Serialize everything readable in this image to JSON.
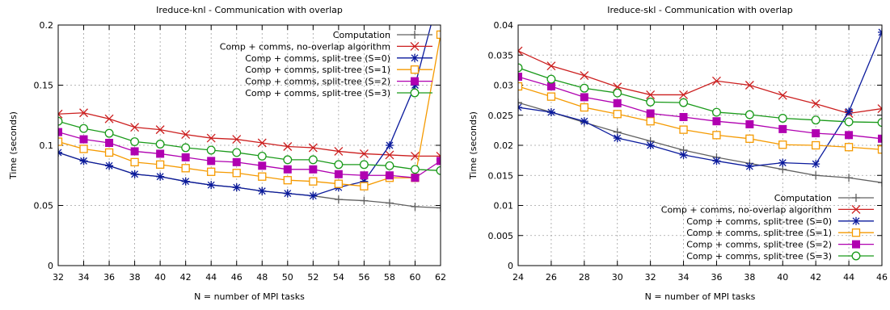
{
  "chart_data": [
    {
      "type": "line",
      "title": "Ireduce-knl - Communication with overlap",
      "xlabel": "N = number of MPI tasks",
      "ylabel": "Time (seconds)",
      "xlim": [
        32,
        62
      ],
      "ylim": [
        0,
        0.2
      ],
      "x_ticks": [
        32,
        34,
        36,
        38,
        40,
        42,
        44,
        46,
        48,
        50,
        52,
        54,
        56,
        58,
        60,
        62
      ],
      "y_ticks": [
        0,
        0.05,
        0.1,
        0.15,
        0.2
      ],
      "y_tick_labels": [
        "0",
        "0.05",
        "0.1",
        "0.15",
        "0.2"
      ],
      "grid": true,
      "legend_position": "top-right",
      "series": [
        {
          "name": "Computation",
          "color": "#606060",
          "marker": "plus",
          "x": [
            32,
            34,
            36,
            38,
            40,
            42,
            44,
            46,
            48,
            50,
            52,
            54,
            56,
            58,
            60,
            62
          ],
          "y": [
            0.094,
            0.087,
            0.083,
            0.076,
            0.074,
            0.07,
            0.067,
            0.065,
            0.062,
            0.06,
            0.058,
            0.055,
            0.054,
            0.052,
            0.049,
            0.048
          ]
        },
        {
          "name": "Comp + comms, no-overlap algorithm",
          "color": "#cc1f1f",
          "marker": "cross",
          "x": [
            32,
            34,
            36,
            38,
            40,
            42,
            44,
            46,
            48,
            50,
            52,
            54,
            56,
            58,
            60,
            62
          ],
          "y": [
            0.126,
            0.127,
            0.122,
            0.115,
            0.113,
            0.109,
            0.106,
            0.105,
            0.102,
            0.099,
            0.098,
            0.095,
            0.093,
            0.092,
            0.091,
            0.091
          ]
        },
        {
          "name": "Comp + comms, split-tree (S=0)",
          "color": "#0a1a9c",
          "marker": "star",
          "x": [
            32,
            34,
            36,
            38,
            40,
            42,
            44,
            46,
            48,
            50,
            52,
            54,
            56,
            58,
            60,
            62
          ],
          "y": [
            0.094,
            0.087,
            0.083,
            0.076,
            0.074,
            0.07,
            0.067,
            0.065,
            0.062,
            0.06,
            0.058,
            0.065,
            0.07,
            0.1,
            0.15,
            0.23
          ]
        },
        {
          "name": "Comp + comms, split-tree (S=1)",
          "color": "#f59a00",
          "marker": "square-open",
          "x": [
            32,
            34,
            36,
            38,
            40,
            42,
            44,
            46,
            48,
            50,
            52,
            54,
            56,
            58,
            60,
            62
          ],
          "y": [
            0.103,
            0.097,
            0.094,
            0.086,
            0.084,
            0.081,
            0.078,
            0.077,
            0.074,
            0.071,
            0.07,
            0.068,
            0.066,
            0.073,
            0.073,
            0.192
          ]
        },
        {
          "name": "Comp + comms, split-tree (S=2)",
          "color": "#b000b0",
          "marker": "square-filled",
          "x": [
            32,
            34,
            36,
            38,
            40,
            42,
            44,
            46,
            48,
            50,
            52,
            54,
            56,
            58,
            60,
            62
          ],
          "y": [
            0.111,
            0.105,
            0.102,
            0.095,
            0.093,
            0.09,
            0.087,
            0.086,
            0.083,
            0.08,
            0.08,
            0.076,
            0.075,
            0.075,
            0.073,
            0.087
          ]
        },
        {
          "name": "Comp + comms, split-tree (S=3)",
          "color": "#1a9a1a",
          "marker": "circle-open",
          "x": [
            32,
            34,
            36,
            38,
            40,
            42,
            44,
            46,
            48,
            50,
            52,
            54,
            56,
            58,
            60,
            62
          ],
          "y": [
            0.12,
            0.114,
            0.11,
            0.103,
            0.101,
            0.098,
            0.096,
            0.094,
            0.091,
            0.088,
            0.088,
            0.084,
            0.084,
            0.083,
            0.08,
            0.079
          ]
        }
      ]
    },
    {
      "type": "line",
      "title": "Ireduce-skl - Communication with overlap",
      "xlabel": "N = number of MPI tasks",
      "ylabel": "Time (seconds)",
      "xlim": [
        24,
        46
      ],
      "ylim": [
        0,
        0.04
      ],
      "x_ticks": [
        24,
        26,
        28,
        30,
        32,
        34,
        36,
        38,
        40,
        42,
        44,
        46
      ],
      "y_ticks": [
        0,
        0.005,
        0.01,
        0.015,
        0.02,
        0.025,
        0.03,
        0.035,
        0.04
      ],
      "y_tick_labels": [
        "0",
        "0.005",
        "0.01",
        "0.015",
        "0.02",
        "0.025",
        "0.03",
        "0.035",
        "0.04"
      ],
      "grid": true,
      "legend_position": "bottom-right",
      "series": [
        {
          "name": "Computation",
          "color": "#606060",
          "marker": "plus",
          "x": [
            24,
            26,
            28,
            30,
            32,
            34,
            36,
            38,
            40,
            42,
            44,
            46
          ],
          "y": [
            0.0271,
            0.0255,
            0.0238,
            0.0222,
            0.0207,
            0.0192,
            0.018,
            0.017,
            0.016,
            0.015,
            0.0146,
            0.0138
          ]
        },
        {
          "name": "Comp + comms, no-overlap algorithm",
          "color": "#cc1f1f",
          "marker": "cross",
          "x": [
            24,
            26,
            28,
            30,
            32,
            34,
            36,
            38,
            40,
            42,
            44,
            46
          ],
          "y": [
            0.0357,
            0.0332,
            0.0316,
            0.0297,
            0.0284,
            0.0284,
            0.0307,
            0.03,
            0.0283,
            0.0269,
            0.0253,
            0.0261
          ]
        },
        {
          "name": "Comp + comms, split-tree (S=0)",
          "color": "#0a1a9c",
          "marker": "star",
          "x": [
            24,
            26,
            28,
            30,
            32,
            34,
            36,
            38,
            40,
            42,
            44,
            46
          ],
          "y": [
            0.0263,
            0.0255,
            0.024,
            0.0212,
            0.02,
            0.0184,
            0.0174,
            0.0165,
            0.0171,
            0.0169,
            0.0256,
            0.0388
          ]
        },
        {
          "name": "Comp + comms, split-tree (S=1)",
          "color": "#f59a00",
          "marker": "square-open",
          "x": [
            24,
            26,
            28,
            30,
            32,
            34,
            36,
            38,
            40,
            42,
            44,
            46
          ],
          "y": [
            0.0298,
            0.0281,
            0.0263,
            0.0252,
            0.024,
            0.0226,
            0.0217,
            0.0211,
            0.0201,
            0.02,
            0.0197,
            0.0193
          ]
        },
        {
          "name": "Comp + comms, split-tree (S=2)",
          "color": "#b000b0",
          "marker": "square-filled",
          "x": [
            24,
            26,
            28,
            30,
            32,
            34,
            36,
            38,
            40,
            42,
            44,
            46
          ],
          "y": [
            0.0314,
            0.0298,
            0.028,
            0.027,
            0.0253,
            0.0247,
            0.024,
            0.0235,
            0.0227,
            0.022,
            0.0217,
            0.0211
          ]
        },
        {
          "name": "Comp + comms, split-tree (S=3)",
          "color": "#1a9a1a",
          "marker": "circle-open",
          "x": [
            24,
            26,
            28,
            30,
            32,
            34,
            36,
            38,
            40,
            42,
            44,
            46
          ],
          "y": [
            0.0329,
            0.031,
            0.0295,
            0.0287,
            0.0272,
            0.0271,
            0.0255,
            0.0251,
            0.0245,
            0.0242,
            0.0239,
            0.0238
          ]
        }
      ]
    }
  ]
}
